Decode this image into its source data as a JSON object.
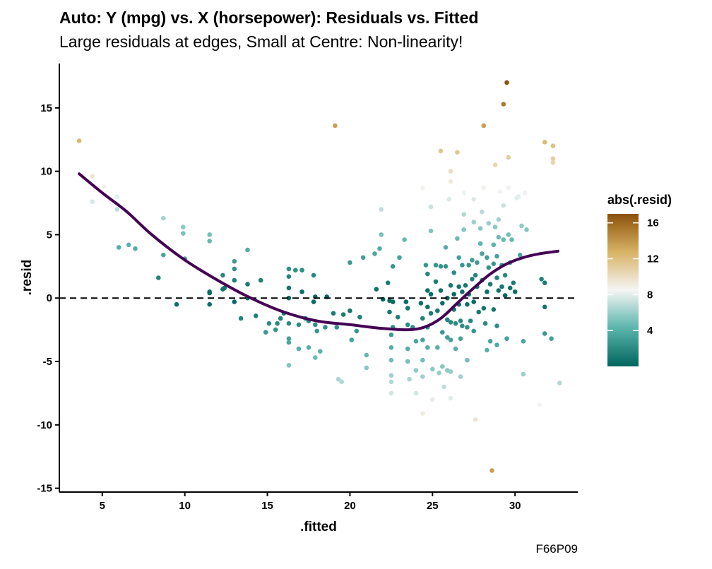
{
  "title": "Auto: Y (mpg) vs. X (horsepower): Residuals vs. Fitted",
  "subtitle": "Large residuals at edges, Small at Centre: Non-linearity!",
  "caption": "F66P09",
  "colors": {
    "smooth_line": "#440154",
    "reference_line": "#000000",
    "scale_low": "#01665e",
    "scale_mid_low": "#5ab4ac",
    "scale_mid": "#f5f5f5",
    "scale_mid_high": "#d8b365",
    "scale_high": "#8c510a"
  },
  "chart_data": {
    "type": "scatter",
    "title": "Auto: Y (mpg) vs. X (horsepower): Residuals vs. Fitted",
    "subtitle": "Large residuals at edges, Small at Centre: Non-linearity!",
    "xlabel": ".fitted",
    "ylabel": ".resid",
    "xlim": [
      2.4,
      33.8
    ],
    "ylim": [
      -15.3,
      18.5
    ],
    "x_ticks": [
      5,
      10,
      15,
      20,
      25,
      30
    ],
    "y_ticks": [
      -15,
      -10,
      -5,
      0,
      5,
      10,
      15
    ],
    "grid": false,
    "reference_line_y": 0,
    "color_legend": {
      "title": "abs(.resid)",
      "range": [
        0,
        17
      ],
      "ticks": [
        4,
        8,
        12,
        16
      ],
      "placement": "right"
    },
    "points": [
      [
        3.6,
        12.4
      ],
      [
        4.4,
        9.6
      ],
      [
        4.4,
        7.6
      ],
      [
        5.1,
        8.8
      ],
      [
        5.9,
        8.0
      ],
      [
        5.9,
        7.0
      ],
      [
        6.0,
        4.0
      ],
      [
        6.6,
        4.2
      ],
      [
        7.0,
        3.9
      ],
      [
        8.4,
        1.6
      ],
      [
        8.7,
        6.3
      ],
      [
        8.7,
        3.4
      ],
      [
        9.5,
        -0.5
      ],
      [
        9.9,
        5.6
      ],
      [
        9.9,
        5.1
      ],
      [
        10.0,
        3.1
      ],
      [
        11.5,
        5.0
      ],
      [
        11.5,
        4.5
      ],
      [
        11.5,
        0.5
      ],
      [
        11.5,
        0.4
      ],
      [
        11.5,
        -0.5
      ],
      [
        12.3,
        1.8
      ],
      [
        12.3,
        0.7
      ],
      [
        12.4,
        0.8
      ],
      [
        13.0,
        2.9
      ],
      [
        13.0,
        2.3
      ],
      [
        13.0,
        1.4
      ],
      [
        13.0,
        -0.3
      ],
      [
        13.4,
        -1.6
      ],
      [
        13.8,
        3.8
      ],
      [
        13.8,
        1.1
      ],
      [
        13.8,
        0.0
      ],
      [
        14.3,
        -1.4
      ],
      [
        14.6,
        1.4
      ],
      [
        14.9,
        -2.7
      ],
      [
        15.1,
        -2.0
      ],
      [
        15.5,
        -2.5
      ],
      [
        15.6,
        -2.0
      ],
      [
        15.8,
        -1.6
      ],
      [
        16.0,
        -1.2
      ],
      [
        16.3,
        2.3
      ],
      [
        16.3,
        1.7
      ],
      [
        16.3,
        0.8
      ],
      [
        16.3,
        0.0
      ],
      [
        16.3,
        -2.0
      ],
      [
        16.3,
        -3.2
      ],
      [
        16.3,
        -5.3
      ],
      [
        16.3,
        -3.5
      ],
      [
        16.7,
        2.2
      ],
      [
        16.9,
        -2.1
      ],
      [
        16.9,
        -4.0
      ],
      [
        17.1,
        2.2
      ],
      [
        17.1,
        0.5
      ],
      [
        17.3,
        -1.6
      ],
      [
        17.5,
        -1.8
      ],
      [
        17.5,
        -3.9
      ],
      [
        17.8,
        1.8
      ],
      [
        17.8,
        -0.3
      ],
      [
        17.9,
        -2.1
      ],
      [
        17.9,
        -4.7
      ],
      [
        17.9,
        0.1
      ],
      [
        18.0,
        -2.6
      ],
      [
        18.2,
        -4.2
      ],
      [
        18.5,
        -2.3
      ],
      [
        18.6,
        0.1
      ],
      [
        19.0,
        -1.2
      ],
      [
        19.1,
        13.6
      ],
      [
        19.2,
        -2.3
      ],
      [
        19.3,
        -6.4
      ],
      [
        19.5,
        -6.6
      ],
      [
        19.6,
        -1.3
      ],
      [
        20.0,
        -1.0
      ],
      [
        20.0,
        2.8
      ],
      [
        20.1,
        -3.3
      ],
      [
        20.4,
        -2.6
      ],
      [
        20.6,
        -1.5
      ],
      [
        20.8,
        3.2
      ],
      [
        21.0,
        -4.5
      ],
      [
        21.0,
        -5.5
      ],
      [
        21.5,
        3.5
      ],
      [
        21.6,
        0.7
      ],
      [
        21.8,
        3.9
      ],
      [
        21.9,
        7.0
      ],
      [
        21.9,
        5.0
      ],
      [
        22.0,
        -0.1
      ],
      [
        22.3,
        1.2
      ],
      [
        22.4,
        -1.1
      ],
      [
        22.4,
        -0.2
      ],
      [
        22.5,
        -2.9
      ],
      [
        22.5,
        -3.9
      ],
      [
        22.5,
        -4.9
      ],
      [
        22.5,
        -6.1
      ],
      [
        22.5,
        -7.5
      ],
      [
        22.5,
        -6.6
      ],
      [
        22.6,
        2.5
      ],
      [
        22.6,
        -0.3
      ],
      [
        22.6,
        -2.3
      ],
      [
        22.9,
        -1.5
      ],
      [
        23.0,
        3.2
      ],
      [
        23.3,
        4.6
      ],
      [
        23.4,
        -0.3
      ],
      [
        23.5,
        -0.8
      ],
      [
        23.5,
        -2.1
      ],
      [
        23.5,
        -4.0
      ],
      [
        23.5,
        -5.0
      ],
      [
        23.6,
        -6.4
      ],
      [
        23.8,
        -2.3
      ],
      [
        24.0,
        -3.4
      ],
      [
        24.0,
        -5.7
      ],
      [
        24.0,
        -7.5
      ],
      [
        24.3,
        -0.4
      ],
      [
        24.4,
        -1.6
      ],
      [
        24.4,
        -3.3
      ],
      [
        24.4,
        -4.9
      ],
      [
        24.4,
        -6.2
      ],
      [
        24.4,
        -9.1
      ],
      [
        24.4,
        8.7
      ],
      [
        24.6,
        2.6
      ],
      [
        24.7,
        1.9
      ],
      [
        24.7,
        0.6
      ],
      [
        24.7,
        -0.7
      ],
      [
        24.7,
        -2.3
      ],
      [
        24.7,
        -3.9
      ],
      [
        24.9,
        5.3
      ],
      [
        24.9,
        7.2
      ],
      [
        24.9,
        0.3
      ],
      [
        24.9,
        -1.2
      ],
      [
        25.0,
        -5.6
      ],
      [
        25.0,
        -8.0
      ],
      [
        25.2,
        2.6
      ],
      [
        25.2,
        1.3
      ],
      [
        25.3,
        -1.0
      ],
      [
        25.3,
        -3.9
      ],
      [
        25.4,
        -5.9
      ],
      [
        25.5,
        11.6
      ],
      [
        25.5,
        2.5
      ],
      [
        25.5,
        0.6
      ],
      [
        25.6,
        -0.4
      ],
      [
        25.6,
        -2.7
      ],
      [
        25.6,
        -5.4
      ],
      [
        25.7,
        -7.0
      ],
      [
        25.8,
        4.0
      ],
      [
        25.8,
        2.5
      ],
      [
        25.9,
        0.0
      ],
      [
        25.9,
        -1.7
      ],
      [
        25.9,
        -3.1
      ],
      [
        25.9,
        -5.7
      ],
      [
        26.0,
        7.8
      ],
      [
        26.1,
        10.0
      ],
      [
        26.1,
        9.2
      ],
      [
        26.1,
        1.0
      ],
      [
        26.1,
        -1.9
      ],
      [
        26.1,
        -3.3
      ],
      [
        26.1,
        -5.8
      ],
      [
        26.1,
        -7.9
      ],
      [
        26.3,
        2.0
      ],
      [
        26.3,
        0.3
      ],
      [
        26.3,
        -0.9
      ],
      [
        26.4,
        -2.0
      ],
      [
        26.4,
        -4.0
      ],
      [
        26.5,
        11.5
      ],
      [
        26.5,
        4.7
      ],
      [
        26.6,
        3.2
      ],
      [
        26.6,
        0.9
      ],
      [
        26.6,
        -0.5
      ],
      [
        26.7,
        -1.8
      ],
      [
        26.7,
        -3.2
      ],
      [
        26.7,
        -6.2
      ],
      [
        26.8,
        2.6
      ],
      [
        26.8,
        0.5
      ],
      [
        26.8,
        -2.2
      ],
      [
        26.9,
        8.3
      ],
      [
        26.9,
        6.6
      ],
      [
        26.9,
        5.4
      ],
      [
        27.0,
        1.0
      ],
      [
        27.1,
        -0.5
      ],
      [
        27.1,
        -2.3
      ],
      [
        27.1,
        -4.9
      ],
      [
        27.2,
        2.6
      ],
      [
        27.2,
        0.3
      ],
      [
        27.3,
        -1.8
      ],
      [
        27.4,
        3.0
      ],
      [
        27.4,
        1.5
      ],
      [
        27.5,
        7.8
      ],
      [
        27.5,
        6.0
      ],
      [
        27.5,
        -0.3
      ],
      [
        27.5,
        -2.6
      ],
      [
        27.6,
        1.8
      ],
      [
        27.6,
        -9.6
      ],
      [
        27.7,
        2.8
      ],
      [
        27.7,
        0.9
      ],
      [
        27.8,
        -1.1
      ],
      [
        27.9,
        5.5
      ],
      [
        27.9,
        4.3
      ],
      [
        28.0,
        6.8
      ],
      [
        28.0,
        3.5
      ],
      [
        28.0,
        1.4
      ],
      [
        28.1,
        -0.8
      ],
      [
        28.1,
        8.7
      ],
      [
        28.1,
        13.6
      ],
      [
        28.2,
        -2.0
      ],
      [
        28.3,
        3.2
      ],
      [
        28.3,
        0.5
      ],
      [
        28.3,
        -4.1
      ],
      [
        28.4,
        2.4
      ],
      [
        28.4,
        5.9
      ],
      [
        28.5,
        1.1
      ],
      [
        28.5,
        -3.4
      ],
      [
        28.6,
        -13.6
      ],
      [
        28.7,
        4.2
      ],
      [
        28.7,
        2.7
      ],
      [
        28.7,
        -0.9
      ],
      [
        28.8,
        10.5
      ],
      [
        28.8,
        5.6
      ],
      [
        28.9,
        3.3
      ],
      [
        28.9,
        1.6
      ],
      [
        28.9,
        -2.2
      ],
      [
        28.9,
        -3.7
      ],
      [
        29.0,
        6.2
      ],
      [
        29.0,
        4.8
      ],
      [
        29.0,
        0.6
      ],
      [
        29.1,
        8.4
      ],
      [
        29.2,
        2.6
      ],
      [
        29.2,
        0.9
      ],
      [
        29.3,
        15.3
      ],
      [
        29.3,
        7.3
      ],
      [
        29.3,
        4.6
      ],
      [
        29.4,
        1.8
      ],
      [
        29.4,
        0.2
      ],
      [
        29.5,
        -3.2
      ],
      [
        29.5,
        17.0
      ],
      [
        29.6,
        11.1
      ],
      [
        29.6,
        8.7
      ],
      [
        29.6,
        5.0
      ],
      [
        29.7,
        2.8
      ],
      [
        29.7,
        0.8
      ],
      [
        29.8,
        4.6
      ],
      [
        29.9,
        1.2
      ],
      [
        30.0,
        0.5
      ],
      [
        30.1,
        7.9
      ],
      [
        30.2,
        8.0
      ],
      [
        30.3,
        3.4
      ],
      [
        30.4,
        5.7
      ],
      [
        30.5,
        -3.4
      ],
      [
        30.5,
        -6.0
      ],
      [
        30.6,
        8.3
      ],
      [
        30.7,
        5.4
      ],
      [
        31.5,
        -8.4
      ],
      [
        31.6,
        1.5
      ],
      [
        31.8,
        12.3
      ],
      [
        31.8,
        -2.8
      ],
      [
        31.8,
        1.2
      ],
      [
        31.8,
        -0.7
      ],
      [
        32.2,
        -3.2
      ],
      [
        32.3,
        12.0
      ],
      [
        32.3,
        11.0
      ],
      [
        32.3,
        10.7
      ],
      [
        32.7,
        -6.7
      ]
    ],
    "smooth_line": {
      "x": [
        3.6,
        5,
        6.5,
        8,
        10,
        12,
        14,
        16,
        18,
        20,
        22,
        23.5,
        24.5,
        25.5,
        26.5,
        27.5,
        28.5,
        29.5,
        30.5,
        31.5,
        32.6
      ],
      "y": [
        9.8,
        8.3,
        6.8,
        5.0,
        3.0,
        1.4,
        0.0,
        -1.1,
        -1.8,
        -2.1,
        -2.4,
        -2.5,
        -2.3,
        -1.6,
        -0.4,
        0.8,
        1.9,
        2.7,
        3.2,
        3.5,
        3.7
      ]
    }
  }
}
